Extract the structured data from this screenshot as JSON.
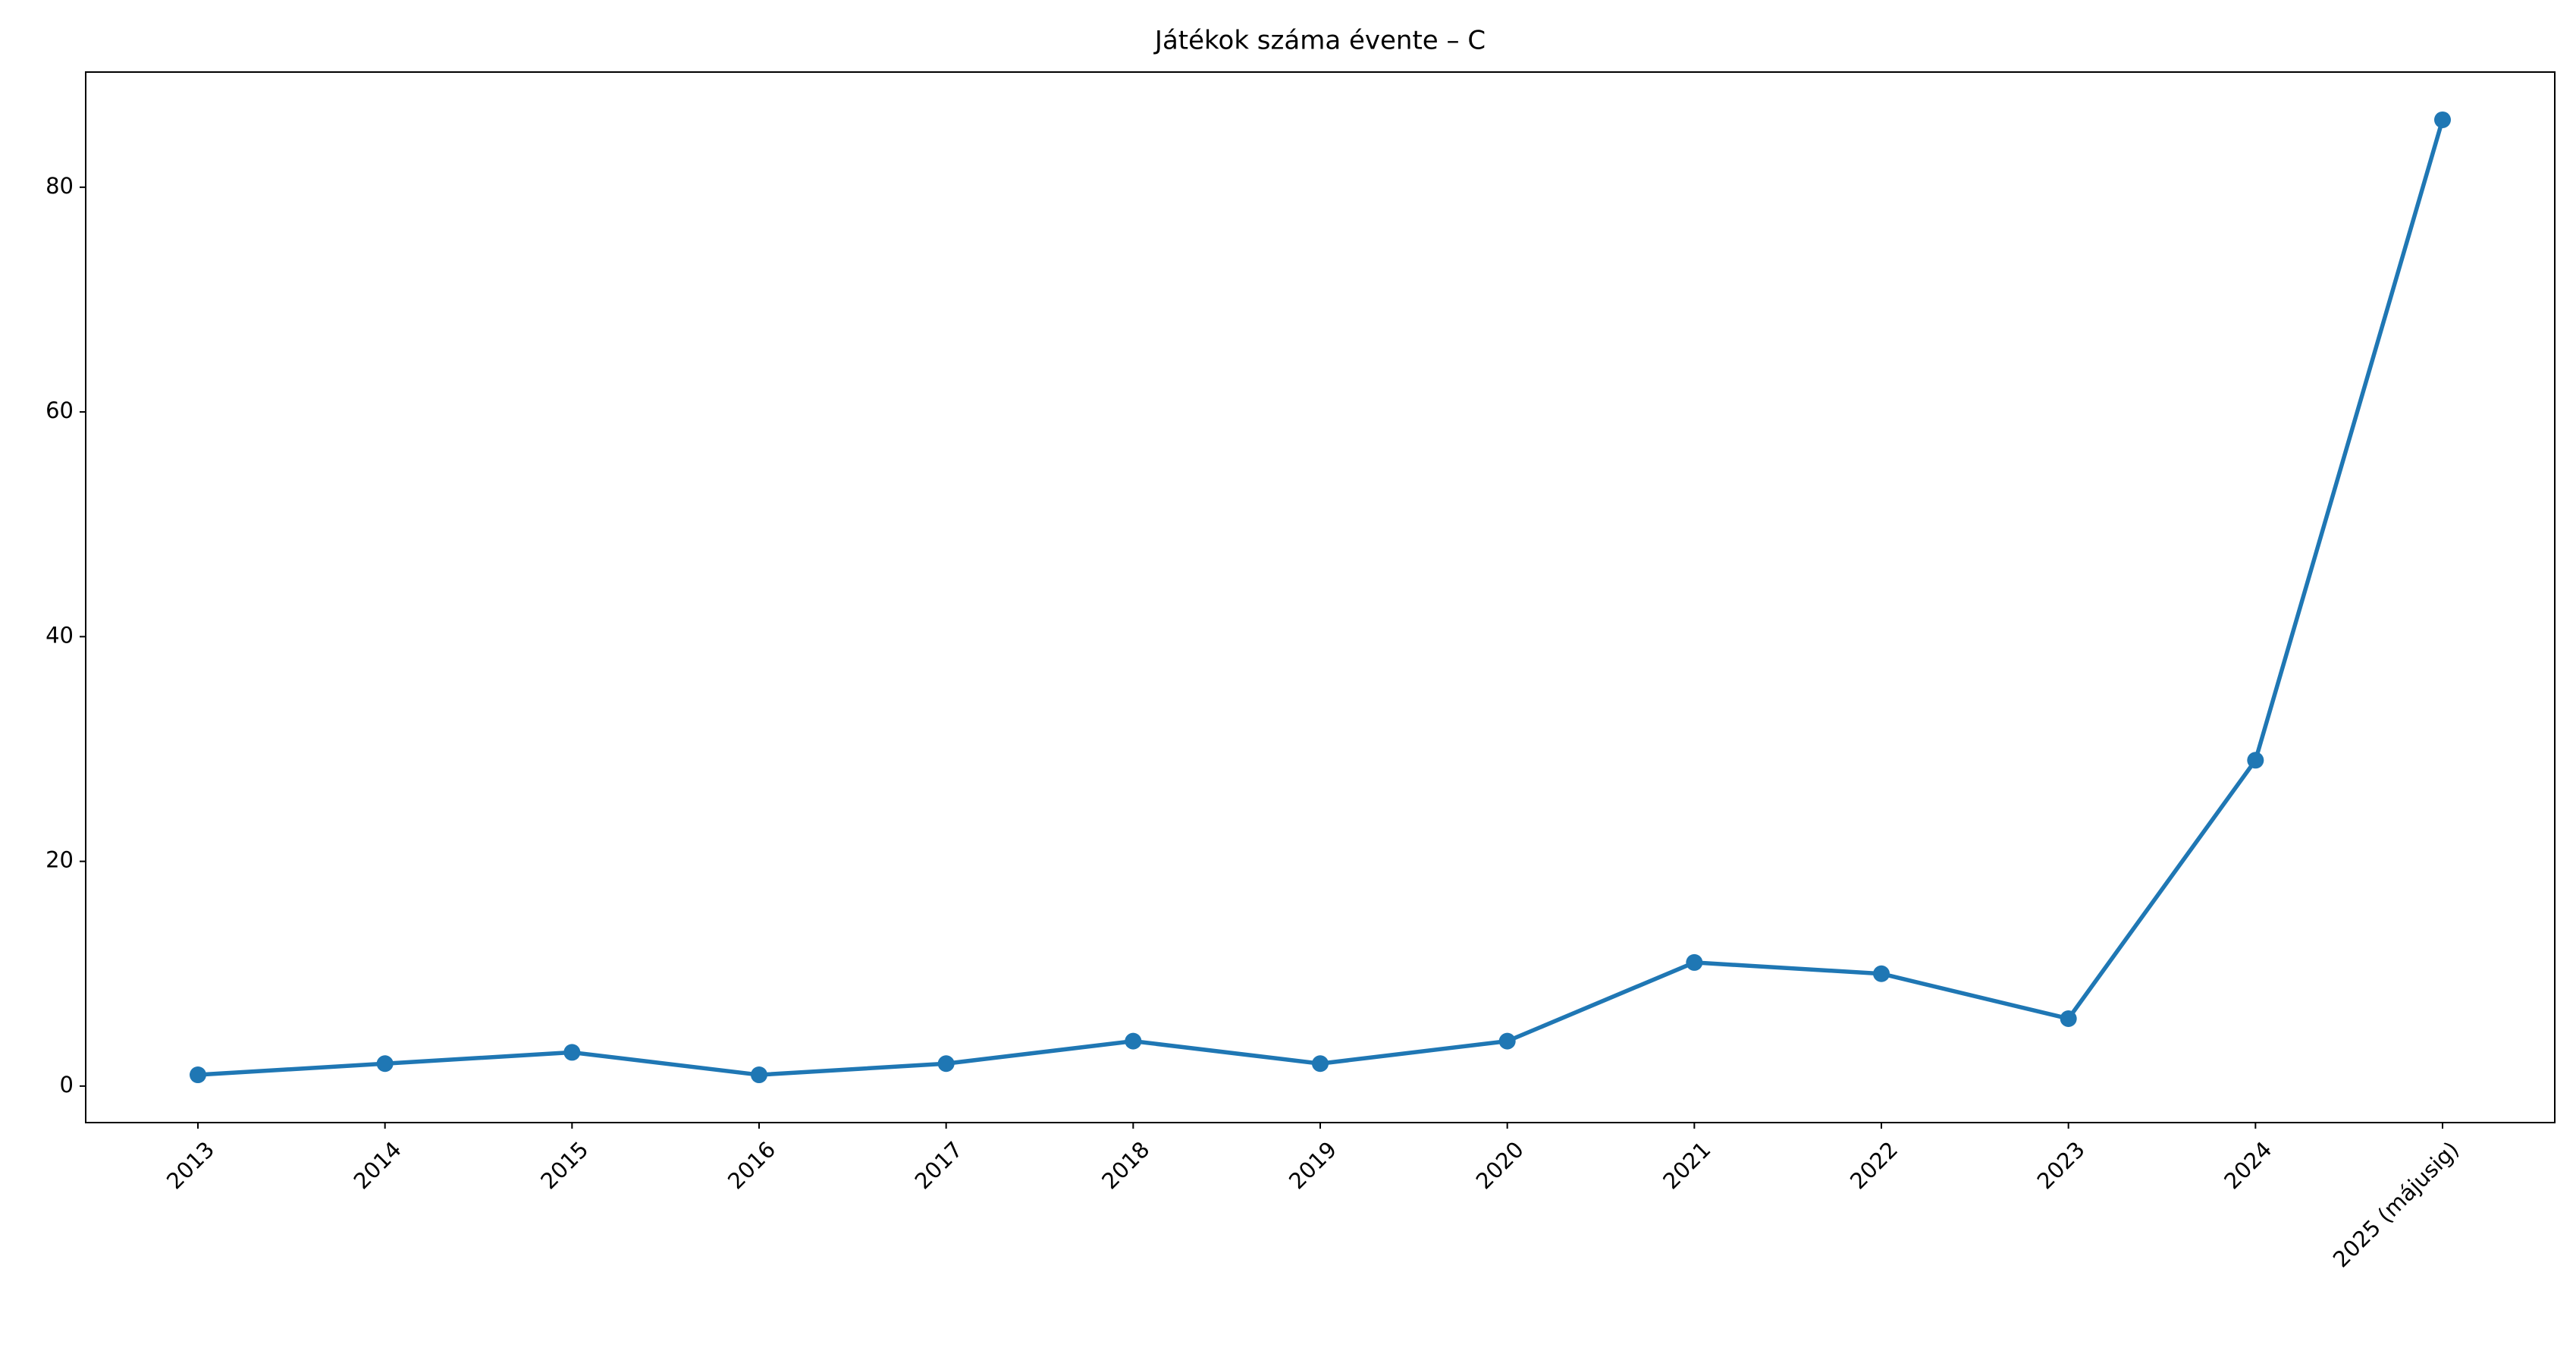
{
  "chart_data": {
    "type": "line",
    "title": "Játékok száma évente – C",
    "categories": [
      "2013",
      "2014",
      "2015",
      "2016",
      "2017",
      "2018",
      "2019",
      "2020",
      "2021",
      "2022",
      "2023",
      "2024",
      "2025 (májusig)"
    ],
    "values": [
      1,
      2,
      3,
      1,
      2,
      4,
      2,
      4,
      11,
      10,
      6,
      29,
      86
    ],
    "color": "#1f77b4",
    "ylim": [
      -3.25,
      90.25
    ],
    "yticks": [
      0,
      20,
      40,
      60,
      80
    ],
    "grid": false
  }
}
